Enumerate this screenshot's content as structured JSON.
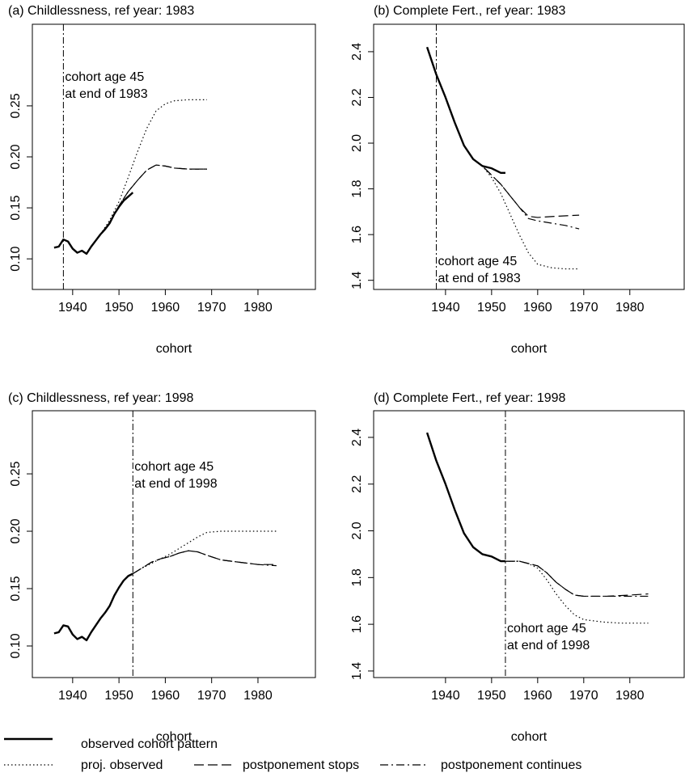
{
  "legend": [
    {
      "name": "observed cohort pattern",
      "dash": "none",
      "width": 2.4
    },
    {
      "name": "proj. observed",
      "dash": "1.5,3",
      "width": 1.2
    },
    {
      "name": "postponement stops",
      "dash": "12,5",
      "width": 1.2
    },
    {
      "name": "postponement continues",
      "dash": "10,4,2,4",
      "width": 1.2
    }
  ],
  "chart_data": [
    {
      "type": "line",
      "title": "(a) Childlessness, ref year: 1983",
      "x_label": "cohort",
      "xlim": [
        1931.3,
        1992.4
      ],
      "xticks": [
        1940,
        1950,
        1960,
        1970,
        1980
      ],
      "ylim": [
        0.07,
        0.33
      ],
      "yticks": [
        {
          "value": 0.1,
          "label": "0.10"
        },
        0.15,
        {
          "value": 0.2,
          "label": "0.20"
        },
        0.25
      ],
      "vline": 1938,
      "annotation": [
        "cohort age 45",
        "at end of 1983"
      ],
      "series": [
        {
          "x": [
            1936,
            1937,
            1938,
            1939,
            1940,
            1941,
            1942,
            1943,
            1944,
            1945,
            1946,
            1947,
            1948,
            1949,
            1950,
            1951,
            1952,
            1953
          ],
          "values": [
            0.111,
            0.112,
            0.119,
            0.117,
            0.11,
            0.106,
            0.108,
            0.105,
            0.112,
            0.118,
            0.124,
            0.129,
            0.135,
            0.144,
            0.151,
            0.157,
            0.161,
            0.165
          ]
        },
        {
          "x": [
            1946,
            1948,
            1950,
            1952,
            1954,
            1956,
            1958,
            1960,
            1962,
            1965,
            1969
          ],
          "values": [
            0.124,
            0.138,
            0.156,
            0.18,
            0.205,
            0.228,
            0.245,
            0.252,
            0.255,
            0.256,
            0.256
          ]
        },
        {
          "x": [
            1946,
            1948,
            1950,
            1952,
            1954,
            1956,
            1958,
            1960,
            1962,
            1965,
            1969
          ],
          "values": [
            0.124,
            0.136,
            0.152,
            0.166,
            0.177,
            0.187,
            0.192,
            0.191,
            0.189,
            0.188,
            0.188
          ]
        },
        {
          "x": [
            1946,
            1948,
            1950,
            1952,
            1954,
            1956,
            1958,
            1960,
            1962,
            1965,
            1969
          ],
          "values": [
            0.124,
            0.136,
            0.152,
            0.166,
            0.177,
            0.187,
            0.192,
            0.191,
            0.189,
            0.188,
            0.188
          ]
        }
      ]
    },
    {
      "type": "line",
      "title": "(b) Complete Fert., ref year: 1983",
      "x_label": "cohort",
      "xlim": [
        1924.4,
        1991.8
      ],
      "xticks": [
        1940,
        1950,
        1960,
        1970,
        1980
      ],
      "ylim": [
        1.36,
        2.52
      ],
      "yticks": [
        1.4,
        1.6,
        1.8,
        {
          "value": 2,
          "label": "2.0"
        },
        2.2,
        2.4
      ],
      "vline": 1938,
      "annotation": [
        "cohort age 45",
        "at end of 1983"
      ],
      "series": [
        {
          "x": [
            1936,
            1938,
            1940,
            1942,
            1944,
            1946,
            1948,
            1950,
            1952,
            1953
          ],
          "values": [
            2.42,
            2.3,
            2.2,
            2.09,
            1.99,
            1.93,
            1.9,
            1.89,
            1.87,
            1.87
          ]
        },
        {
          "x": [
            1946,
            1948,
            1950,
            1952,
            1954,
            1956,
            1958,
            1960,
            1963,
            1966,
            1969
          ],
          "values": [
            1.93,
            1.9,
            1.85,
            1.78,
            1.69,
            1.6,
            1.52,
            1.47,
            1.455,
            1.45,
            1.45
          ]
        },
        {
          "x": [
            1946,
            1948,
            1950,
            1952,
            1954,
            1956,
            1958,
            1960,
            1964,
            1969
          ],
          "values": [
            1.93,
            1.9,
            1.86,
            1.82,
            1.77,
            1.72,
            1.68,
            1.675,
            1.68,
            1.685
          ]
        },
        {
          "x": [
            1946,
            1948,
            1950,
            1952,
            1954,
            1956,
            1958,
            1960,
            1963,
            1966,
            1969
          ],
          "values": [
            1.93,
            1.9,
            1.86,
            1.82,
            1.77,
            1.72,
            1.67,
            1.66,
            1.65,
            1.64,
            1.625
          ]
        }
      ]
    },
    {
      "type": "line",
      "title": "(c) Childlessness, ref year: 1998",
      "x_label": "cohort",
      "xlim": [
        1931.3,
        1992.4
      ],
      "xticks": [
        1940,
        1950,
        1960,
        1970,
        1980
      ],
      "ylim": [
        0.0725,
        0.305
      ],
      "yticks": [
        {
          "value": 0.1,
          "label": "0.10"
        },
        0.15,
        {
          "value": 0.2,
          "label": "0.20"
        },
        0.25
      ],
      "vline": 1953,
      "annotation": [
        "cohort age 45",
        "at end of 1998"
      ],
      "series": [
        {
          "x": [
            1936,
            1937,
            1938,
            1939,
            1940,
            1941,
            1942,
            1943,
            1944,
            1945,
            1946,
            1947,
            1948,
            1949,
            1950,
            1951,
            1952,
            1953
          ],
          "values": [
            0.111,
            0.112,
            0.118,
            0.117,
            0.11,
            0.106,
            0.108,
            0.105,
            0.112,
            0.118,
            0.124,
            0.129,
            0.135,
            0.144,
            0.151,
            0.157,
            0.161,
            0.163
          ]
        },
        {
          "x": [
            1953,
            1955,
            1957,
            1959,
            1961,
            1963,
            1965,
            1967,
            1969,
            1972,
            1976,
            1984
          ],
          "values": [
            0.163,
            0.168,
            0.172,
            0.176,
            0.18,
            0.185,
            0.19,
            0.195,
            0.199,
            0.2,
            0.2,
            0.2
          ]
        },
        {
          "x": [
            1953,
            1955,
            1957,
            1959,
            1961,
            1963,
            1965,
            1967,
            1969,
            1972,
            1976,
            1980,
            1984
          ],
          "values": [
            0.163,
            0.168,
            0.173,
            0.176,
            0.178,
            0.181,
            0.183,
            0.182,
            0.179,
            0.175,
            0.173,
            0.171,
            0.171
          ]
        },
        {
          "x": [
            1953,
            1955,
            1957,
            1959,
            1961,
            1963,
            1965,
            1967,
            1969,
            1972,
            1976,
            1980,
            1984
          ],
          "values": [
            0.163,
            0.168,
            0.173,
            0.176,
            0.178,
            0.181,
            0.183,
            0.182,
            0.179,
            0.175,
            0.173,
            0.171,
            0.17
          ]
        }
      ]
    },
    {
      "type": "line",
      "title": "(d) Complete Fert., ref year: 1998",
      "x_label": "cohort",
      "xlim": [
        1924.4,
        1991.8
      ],
      "xticks": [
        1940,
        1950,
        1960,
        1970,
        1980
      ],
      "ylim": [
        1.372,
        2.514
      ],
      "yticks": [
        1.4,
        1.6,
        1.8,
        {
          "value": 2,
          "label": "2.0"
        },
        2.2,
        2.4
      ],
      "vline": 1953,
      "annotation": [
        "cohort age 45",
        "at end of 1998"
      ],
      "series": [
        {
          "x": [
            1936,
            1938,
            1940,
            1942,
            1944,
            1946,
            1948,
            1950,
            1952,
            1953
          ],
          "values": [
            2.42,
            2.3,
            2.2,
            2.09,
            1.99,
            1.93,
            1.9,
            1.89,
            1.87,
            1.87
          ]
        },
        {
          "x": [
            1953,
            1956,
            1958,
            1960,
            1962,
            1964,
            1966,
            1968,
            1970,
            1974,
            1978,
            1984
          ],
          "values": [
            1.87,
            1.87,
            1.86,
            1.84,
            1.79,
            1.73,
            1.68,
            1.64,
            1.62,
            1.61,
            1.605,
            1.605
          ]
        },
        {
          "x": [
            1953,
            1956,
            1958,
            1960,
            1962,
            1964,
            1966,
            1968,
            1970,
            1975,
            1980,
            1984
          ],
          "values": [
            1.87,
            1.87,
            1.86,
            1.85,
            1.82,
            1.78,
            1.75,
            1.725,
            1.72,
            1.72,
            1.725,
            1.73
          ]
        },
        {
          "x": [
            1953,
            1956,
            1958,
            1960,
            1962,
            1964,
            1966,
            1968,
            1970,
            1975,
            1980,
            1984
          ],
          "values": [
            1.87,
            1.87,
            1.86,
            1.85,
            1.82,
            1.78,
            1.75,
            1.725,
            1.72,
            1.72,
            1.72,
            1.72
          ]
        }
      ]
    }
  ]
}
